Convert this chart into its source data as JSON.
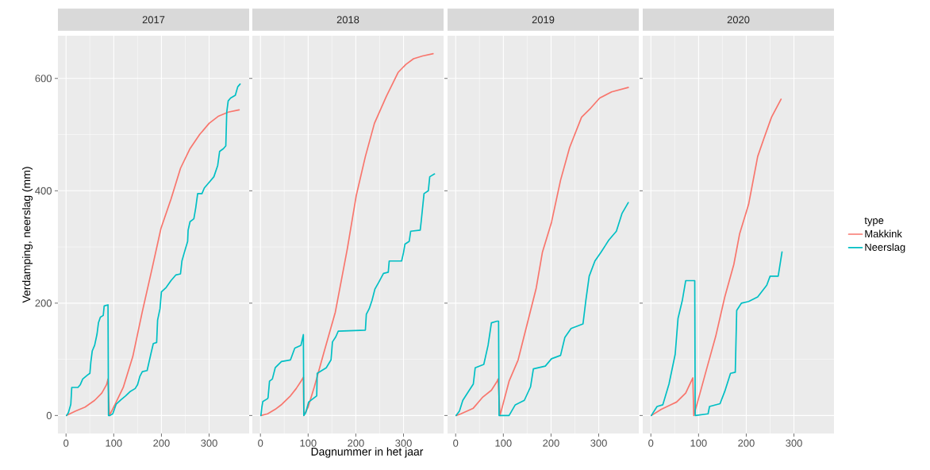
{
  "chart_data": [
    {
      "type": "line",
      "title": "2017",
      "ylabel": "Verdamping, neerslag (mm)",
      "xlim": [
        -17,
        384
      ],
      "ylim": [
        -32,
        676
      ],
      "xticks": [
        0,
        100,
        200,
        300
      ],
      "yticks": [
        0,
        200,
        400,
        600
      ],
      "grid": true,
      "series": [
        {
          "color": "#f8766d",
          "x": [
            1,
            20,
            40,
            60,
            75,
            85,
            88,
            91,
            100,
            120,
            140,
            160,
            180,
            199,
            220,
            240,
            260,
            280,
            300,
            320,
            340,
            363
          ],
          "values": [
            0,
            8,
            15,
            27,
            40,
            55,
            65,
            0,
            15,
            50,
            105,
            185,
            260,
            333,
            385,
            440,
            475,
            500,
            520,
            533,
            540,
            544
          ]
        },
        {
          "color": "#00bfc4",
          "x": [
            1,
            5,
            10,
            12,
            25,
            30,
            35,
            45,
            50,
            52,
            55,
            60,
            65,
            68,
            72,
            78,
            80,
            88,
            89,
            92,
            98,
            105,
            115,
            125,
            135,
            145,
            150,
            155,
            160,
            170,
            178,
            183,
            190,
            192,
            197,
            200,
            210,
            220,
            230,
            240,
            243,
            248,
            255,
            256,
            260,
            268,
            272,
            276,
            285,
            290,
            300,
            310,
            318,
            322,
            330,
            335,
            337,
            340,
            345,
            355,
            360,
            365
          ],
          "values": [
            0,
            5,
            20,
            50,
            50,
            55,
            65,
            72,
            75,
            95,
            115,
            125,
            145,
            165,
            175,
            178,
            195,
            197,
            0,
            0,
            3,
            20,
            28,
            35,
            43,
            48,
            55,
            70,
            78,
            80,
            110,
            128,
            130,
            170,
            190,
            220,
            228,
            240,
            250,
            252,
            275,
            290,
            310,
            330,
            345,
            350,
            370,
            395,
            395,
            405,
            415,
            425,
            445,
            470,
            475,
            480,
            540,
            560,
            565,
            570,
            585,
            590
          ]
        }
      ]
    },
    {
      "type": "line",
      "title": "2018",
      "xlabel": "Dagnummer in het jaar",
      "xlim": [
        -17,
        384
      ],
      "ylim": [
        -32,
        676
      ],
      "xticks": [
        0,
        100,
        200,
        300
      ],
      "yticks": [
        0,
        200,
        400,
        600
      ],
      "grid": true,
      "tick_labels": "x",
      "series": [
        {
          "color": "#f8766d",
          "x": [
            1,
            15,
            31,
            45,
            63,
            75,
            85,
            90,
            91,
            100,
            113,
            132,
            157,
            182,
            201,
            220,
            239,
            264,
            289,
            305,
            321,
            340,
            362
          ],
          "values": [
            0,
            3,
            11,
            20,
            35,
            48,
            61,
            68,
            0,
            15,
            51,
            109,
            184,
            296,
            392,
            461,
            520,
            568,
            611,
            625,
            635,
            640,
            644
          ]
        },
        {
          "color": "#00bfc4",
          "x": [
            1,
            3,
            5,
            15,
            16,
            19,
            25,
            31,
            44,
            63,
            72,
            85,
            90,
            91,
            95,
            101,
            118,
            119,
            138,
            148,
            151,
            158,
            163,
            220,
            222,
            228,
            234,
            240,
            248,
            258,
            268,
            270,
            296,
            300,
            303,
            312,
            315,
            335,
            337,
            343,
            352,
            355,
            365
          ],
          "values": [
            0,
            15,
            25,
            30,
            32,
            61,
            65,
            85,
            96,
            99,
            120,
            125,
            144,
            0,
            5,
            24,
            35,
            75,
            85,
            99,
            131,
            140,
            150,
            152,
            180,
            190,
            205,
            225,
            237,
            253,
            255,
            275,
            275,
            290,
            305,
            310,
            328,
            330,
            345,
            395,
            400,
            425,
            430
          ]
        }
      ]
    },
    {
      "type": "line",
      "title": "2019",
      "xlim": [
        -17,
        384
      ],
      "ylim": [
        -32,
        676
      ],
      "xticks": [
        0,
        100,
        200,
        300
      ],
      "yticks": [
        0,
        200,
        400,
        600
      ],
      "grid": true,
      "tick_labels": "x",
      "series": [
        {
          "color": "#f8766d",
          "x": [
            1,
            11,
            37,
            56,
            75,
            87,
            89,
            93,
            112,
            131,
            150,
            169,
            182,
            201,
            220,
            239,
            264,
            283,
            302,
            327,
            362
          ],
          "values": [
            0,
            3,
            13,
            32,
            45,
            61,
            65,
            0,
            61,
            99,
            163,
            227,
            291,
            344,
            419,
            477,
            531,
            547,
            565,
            576,
            584
          ]
        },
        {
          "color": "#00bfc4",
          "x": [
            1,
            8,
            15,
            27,
            37,
            41,
            59,
            68,
            75,
            87,
            90,
            91,
            112,
            125,
            144,
            157,
            163,
            188,
            201,
            220,
            229,
            242,
            267,
            273,
            280,
            292,
            305,
            321,
            337,
            349,
            362
          ],
          "values": [
            0,
            8,
            27,
            43,
            56,
            85,
            91,
            125,
            165,
            168,
            168,
            0,
            0,
            19,
            27,
            51,
            83,
            88,
            101,
            107,
            139,
            155,
            163,
            205,
            248,
            275,
            291,
            312,
            328,
            360,
            379
          ]
        }
      ]
    },
    {
      "type": "line",
      "title": "2020",
      "legend_title": "type",
      "legend": "right",
      "xlim": [
        -17,
        384
      ],
      "ylim": [
        -32,
        676
      ],
      "xticks": [
        0,
        100,
        200,
        300
      ],
      "yticks": [
        0,
        200,
        400,
        600
      ],
      "grid": true,
      "tick_labels": "x",
      "series": [
        {
          "name": "Makkink",
          "color": "#f8766d",
          "x": [
            1,
            22,
            54,
            73,
            88,
            90,
            98,
            117,
            136,
            155,
            174,
            186,
            205,
            224,
            237,
            253,
            273
          ],
          "values": [
            0,
            11,
            24,
            40,
            67,
            0,
            24,
            83,
            141,
            211,
            269,
            323,
            376,
            461,
            493,
            531,
            563
          ]
        },
        {
          "name": "Neerslag",
          "color": "#00bfc4",
          "x": [
            1,
            13,
            25,
            38,
            51,
            57,
            66,
            73,
            92,
            93,
            120,
            123,
            145,
            155,
            167,
            177,
            180,
            190,
            205,
            224,
            243,
            250,
            267,
            275
          ],
          "values": [
            0,
            16,
            19,
            56,
            109,
            173,
            205,
            240,
            240,
            0,
            3,
            16,
            21,
            43,
            75,
            77,
            187,
            200,
            203,
            211,
            232,
            248,
            248,
            291
          ]
        }
      ]
    }
  ]
}
